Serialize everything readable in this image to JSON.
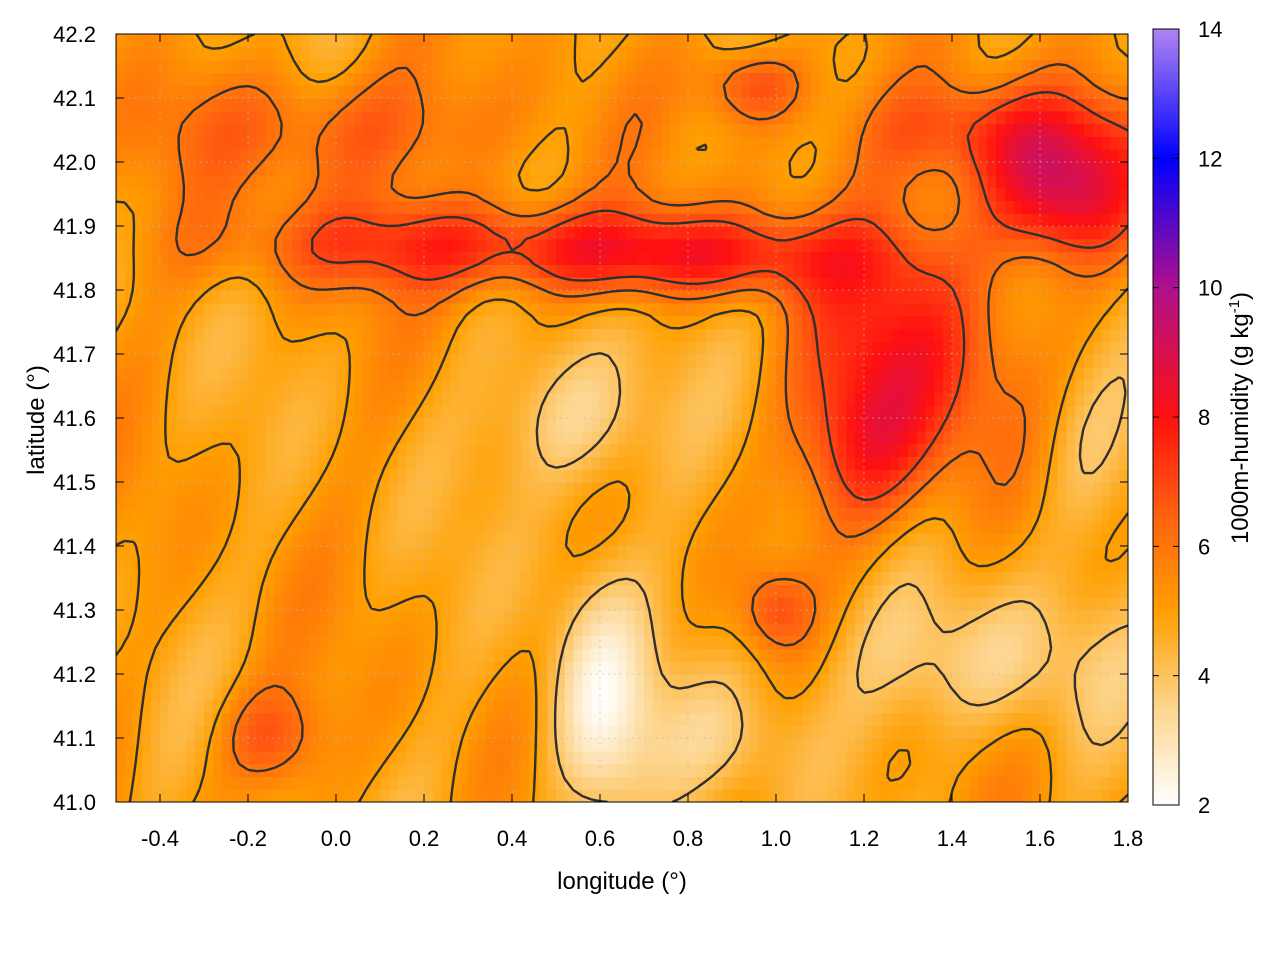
{
  "chart_data": {
    "type": "heatmap",
    "xlabel": "longitude (°)",
    "ylabel": "latitude (°)",
    "colorbar_label_main": "1000m-humidity (g kg",
    "colorbar_label_sup": "-1",
    "colorbar_label_end": ")",
    "xlim": [
      -0.5,
      1.8
    ],
    "ylim": [
      41.0,
      42.2
    ],
    "clim": [
      2,
      14
    ],
    "xticks": [
      -0.4,
      -0.2,
      0.0,
      0.2,
      0.4,
      0.6,
      0.8,
      1.0,
      1.2,
      1.4,
      1.6,
      1.8
    ],
    "xtick_labels": [
      "-0.4",
      "-0.2",
      "0.0",
      "0.2",
      "0.4",
      "0.6",
      "0.8",
      "1.0",
      "1.2",
      "1.4",
      "1.6",
      "1.8"
    ],
    "yticks": [
      41.0,
      41.1,
      41.2,
      41.3,
      41.4,
      41.5,
      41.6,
      41.7,
      41.8,
      41.9,
      42.0,
      42.1,
      42.2
    ],
    "ytick_labels": [
      "41.0",
      "41.1",
      "41.2",
      "41.3",
      "41.4",
      "41.5",
      "41.6",
      "41.7",
      "41.8",
      "41.9",
      "42.0",
      "42.1",
      "42.2"
    ],
    "cticks": [
      2,
      4,
      6,
      8,
      10,
      12,
      14
    ],
    "ctick_labels": [
      "2",
      "4",
      "6",
      "8",
      "10",
      "12",
      "14"
    ],
    "colormap": [
      {
        "v": 2,
        "c": "#ffffff"
      },
      {
        "v": 3.5,
        "c": "#fdd58e"
      },
      {
        "v": 5,
        "c": "#ff9f00"
      },
      {
        "v": 6.5,
        "c": "#ff6010"
      },
      {
        "v": 8,
        "c": "#ff1010"
      },
      {
        "v": 10,
        "c": "#b0108c"
      },
      {
        "v": 12,
        "c": "#0000ff"
      },
      {
        "v": 14,
        "c": "#b085f0"
      }
    ],
    "grid": true,
    "contours": true,
    "humidity_field_features": [
      {
        "lon": 0.35,
        "lat": 41.87,
        "amp": 2.6,
        "rx": 0.55,
        "ry": 0.07
      },
      {
        "lon": 0.85,
        "lat": 41.85,
        "amp": 2.0,
        "rx": 0.35,
        "ry": 0.06
      },
      {
        "lon": 0.95,
        "lat": 42.12,
        "amp": 2.2,
        "rx": 0.12,
        "ry": 0.06
      },
      {
        "lon": 1.3,
        "lat": 41.7,
        "amp": 2.8,
        "rx": 0.22,
        "ry": 0.22
      },
      {
        "lon": 1.2,
        "lat": 41.55,
        "amp": 1.8,
        "rx": 0.14,
        "ry": 0.12
      },
      {
        "lon": 1.65,
        "lat": 41.95,
        "amp": 3.6,
        "rx": 0.18,
        "ry": 0.1
      },
      {
        "lon": 1.5,
        "lat": 42.05,
        "amp": 2.2,
        "rx": 0.3,
        "ry": 0.08
      },
      {
        "lon": 1.0,
        "lat": 41.3,
        "amp": 1.6,
        "rx": 0.08,
        "ry": 0.06
      },
      {
        "lon": 0.0,
        "lat": 42.05,
        "amp": 1.6,
        "rx": 0.4,
        "ry": 0.1
      },
      {
        "lon": -0.15,
        "lat": 41.1,
        "amp": 1.8,
        "rx": 0.12,
        "ry": 0.08
      },
      {
        "lon": 0.6,
        "lat": 41.15,
        "amp": -2.4,
        "rx": 0.12,
        "ry": 0.2
      },
      {
        "lon": 0.55,
        "lat": 41.6,
        "amp": -1.8,
        "rx": 0.18,
        "ry": 0.12
      },
      {
        "lon": 1.45,
        "lat": 41.22,
        "amp": -1.4,
        "rx": 0.35,
        "ry": 0.12
      },
      {
        "lon": 1.7,
        "lat": 41.55,
        "amp": -1.2,
        "rx": 0.12,
        "ry": 0.15
      },
      {
        "lon": 0.9,
        "lat": 41.1,
        "amp": -1.0,
        "rx": 0.2,
        "ry": 0.1
      }
    ]
  }
}
